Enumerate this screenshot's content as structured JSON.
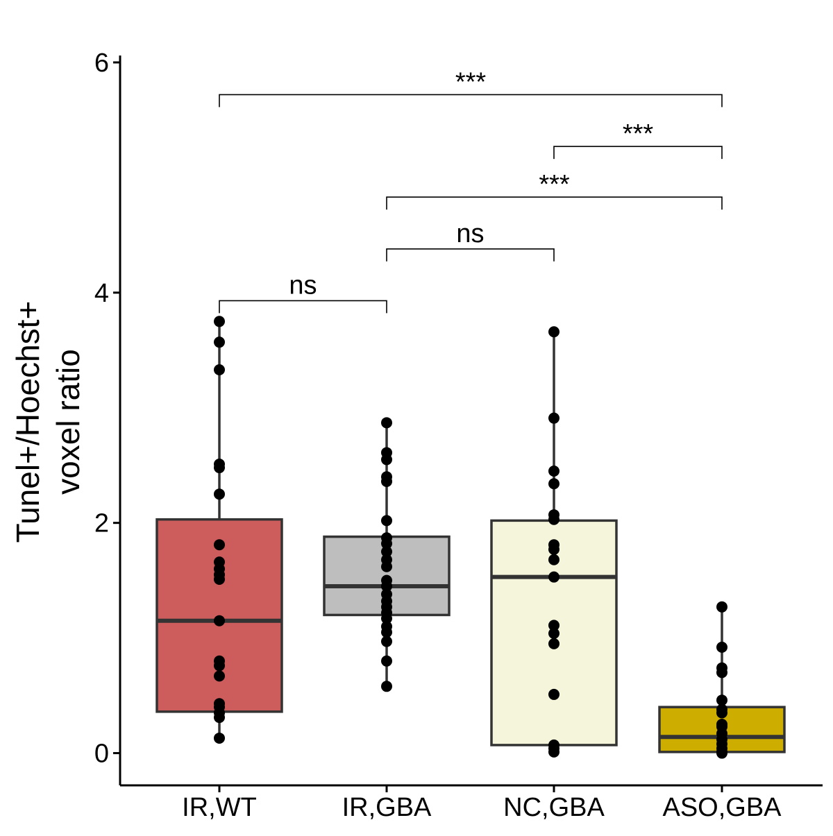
{
  "chart_data": {
    "type": "box",
    "ylabel_lines": [
      "Tunel+/Hoechst+",
      "voxel ratio"
    ],
    "xlabel": "",
    "ylim": [
      -0.28,
      6.06
    ],
    "yticks": [
      "0",
      "2",
      "4",
      "6"
    ],
    "categories": [
      "IR,WT",
      "IR,GBA",
      "NC,GBA",
      "ASO,GBA"
    ],
    "groups": [
      {
        "name": "IR,WT",
        "color": "#cd5c5c",
        "q1": 0.36,
        "median": 1.15,
        "q3": 2.03,
        "whisker_low": 0.13,
        "whisker_high": 3.75,
        "points": [
          3.75,
          3.57,
          3.33,
          2.51,
          2.48,
          2.25,
          1.81,
          1.66,
          1.6,
          1.55,
          1.51,
          1.15,
          0.8,
          0.76,
          0.67,
          0.43,
          0.4,
          0.35,
          0.31,
          0.13
        ]
      },
      {
        "name": "IR,GBA",
        "color": "#bebebe",
        "q1": 1.2,
        "median": 1.45,
        "q3": 1.88,
        "whisker_low": 0.58,
        "whisker_high": 2.87,
        "points": [
          2.87,
          2.61,
          2.55,
          2.4,
          2.36,
          2.02,
          1.87,
          1.82,
          1.75,
          1.68,
          1.62,
          1.5,
          1.45,
          1.38,
          1.32,
          1.27,
          1.22,
          1.17,
          1.1,
          1.05,
          0.97,
          0.8,
          0.58
        ]
      },
      {
        "name": "NC,GBA",
        "color": "#f5f5dc",
        "q1": 0.07,
        "median": 1.53,
        "q3": 2.02,
        "whisker_low": 0.0,
        "whisker_high": 3.66,
        "points": [
          3.66,
          2.91,
          2.45,
          2.34,
          2.07,
          2.03,
          1.81,
          1.77,
          1.68,
          1.53,
          1.11,
          1.04,
          0.95,
          0.51,
          0.07,
          0.04,
          0.01
        ]
      },
      {
        "name": "ASO,GBA",
        "color": "#cdad00",
        "q1": 0.01,
        "median": 0.14,
        "q3": 0.4,
        "whisker_low": 0.0,
        "whisker_high": 1.27,
        "points": [
          1.27,
          0.92,
          0.74,
          0.7,
          0.46,
          0.38,
          0.35,
          0.25,
          0.23,
          0.17,
          0.12,
          0.08,
          0.04,
          0.01,
          0.0
        ]
      }
    ],
    "comparisons": [
      {
        "from": "IR,WT",
        "to": "IR,GBA",
        "label": "ns",
        "y_bottom": 3.93,
        "y_top": 3.93
      },
      {
        "from": "IR,GBA",
        "to": "NC,GBA",
        "label": "ns",
        "y_bottom": 4.38,
        "y_top": 4.38
      },
      {
        "from": "IR,GBA",
        "to": "ASO,GBA",
        "label": "***",
        "y_bottom": 4.83,
        "y_top": 4.83
      },
      {
        "from": "NC,GBA",
        "to": "ASO,GBA",
        "label": "***",
        "y_bottom": 5.27,
        "y_top": 5.27
      },
      {
        "from": "IR,WT",
        "to": "ASO,GBA",
        "label": "***",
        "y_bottom": 5.72,
        "y_top": 5.72
      }
    ]
  }
}
